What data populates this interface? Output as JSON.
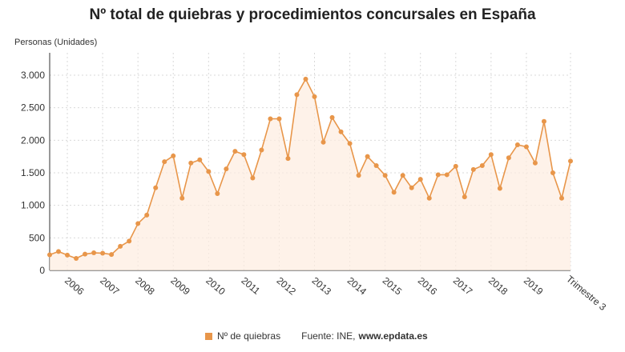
{
  "chart_data": {
    "type": "line",
    "title": "Nº total de quiebras y procedimientos concursales en España",
    "ylabel": "Personas (Unidades)",
    "xlabel": "",
    "ylim": [
      0,
      3000
    ],
    "y_ticks": [
      0,
      500,
      1000,
      1500,
      2000,
      2500,
      3000
    ],
    "y_tick_labels": [
      "0",
      "500",
      "1.000",
      "1.500",
      "2.000",
      "2.500",
      "3.000"
    ],
    "x_year_labels": [
      "2006",
      "2007",
      "2008",
      "2009",
      "2010",
      "2011",
      "2012",
      "2013",
      "2014",
      "2015",
      "2016",
      "2017",
      "2018",
      "2019"
    ],
    "x_last_label": "Trimestre 3",
    "grid": true,
    "legend_position": "bottom",
    "series": [
      {
        "name": "Nº de quiebras",
        "color": "#e8964a",
        "values": [
          240,
          290,
          235,
          185,
          250,
          270,
          265,
          245,
          370,
          450,
          720,
          850,
          1270,
          1670,
          1760,
          1110,
          1650,
          1700,
          1520,
          1180,
          1560,
          1830,
          1780,
          1420,
          1850,
          2330,
          2330,
          1720,
          2700,
          2940,
          2670,
          1970,
          2350,
          2130,
          1950,
          1460,
          1750,
          1610,
          1460,
          1200,
          1460,
          1270,
          1400,
          1110,
          1470,
          1470,
          1600,
          1130,
          1550,
          1610,
          1780,
          1260,
          1730,
          1930,
          1900,
          1650,
          2290,
          1500,
          1110,
          1680
        ]
      }
    ]
  },
  "legend": {
    "series_label": "Nº de quiebras",
    "source_prefix": "Fuente: INE,",
    "source_site": "www.epdata.es"
  }
}
